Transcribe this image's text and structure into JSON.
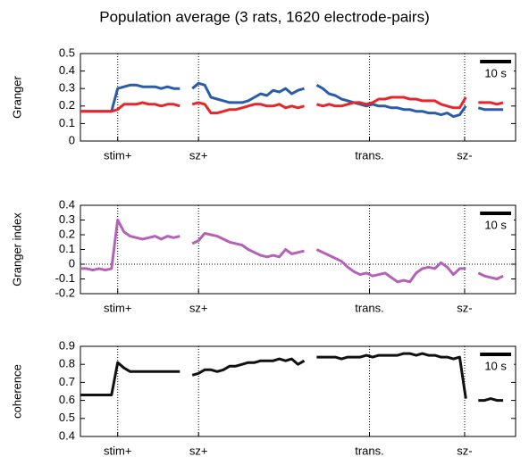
{
  "chart_data": [
    {
      "type": "line",
      "title": "Population average (3 rats, 1620 electrode-pairs)",
      "ylabel": "Granger",
      "x": [
        0,
        2,
        4,
        6,
        8,
        10,
        12,
        14,
        16,
        18,
        20,
        22,
        24,
        26,
        28,
        30,
        32,
        34,
        36,
        38,
        40,
        42,
        44,
        46,
        48,
        50,
        52,
        54,
        56,
        58,
        60,
        62,
        64,
        66,
        68,
        70,
        72,
        74,
        76,
        78,
        80,
        82,
        84,
        86,
        88,
        90,
        92,
        94,
        96,
        98,
        100,
        102,
        104,
        106,
        108,
        110,
        112,
        114,
        116,
        118,
        120,
        122,
        124,
        126,
        128,
        130,
        132,
        134,
        136
      ],
      "xlim": [
        0,
        140
      ],
      "ylim": [
        0,
        0.5
      ],
      "yticks": [
        0,
        0.1,
        0.2,
        0.3,
        0.4,
        0.5
      ],
      "xmarkers": [
        {
          "value": 12,
          "label": "stim+"
        },
        {
          "value": 38,
          "label": "sz+"
        },
        {
          "value": 93,
          "label": "trans."
        },
        {
          "value": 123.6,
          "label": "sz-"
        }
      ],
      "scalebar": {
        "value": 10,
        "label": "10 s"
      },
      "series": [
        {
          "color": "#2a5caa",
          "values": [
            0.17,
            0.17,
            0.17,
            0.17,
            0.17,
            0.17,
            0.3,
            0.31,
            0.32,
            0.32,
            0.31,
            0.31,
            0.31,
            0.3,
            0.31,
            0.3,
            0.3,
            null,
            0.3,
            0.33,
            0.32,
            0.25,
            0.24,
            0.23,
            0.22,
            0.22,
            0.22,
            0.23,
            0.25,
            0.27,
            0.26,
            0.29,
            0.28,
            0.3,
            0.27,
            0.29,
            0.3,
            null,
            0.32,
            0.3,
            0.27,
            0.26,
            0.24,
            0.23,
            0.22,
            0.21,
            0.2,
            0.21,
            0.2,
            0.2,
            0.19,
            0.19,
            0.18,
            0.18,
            0.17,
            0.17,
            0.16,
            0.16,
            0.15,
            0.16,
            0.14,
            0.15,
            0.2,
            null,
            0.19,
            0.18,
            0.18,
            0.18,
            0.18
          ]
        },
        {
          "color": "#e8262a",
          "values": [
            0.17,
            0.17,
            0.17,
            0.17,
            0.17,
            0.17,
            0.18,
            0.21,
            0.21,
            0.21,
            0.22,
            0.21,
            0.21,
            0.2,
            0.21,
            0.21,
            0.2,
            null,
            0.21,
            0.22,
            0.21,
            0.16,
            0.16,
            0.17,
            0.18,
            0.18,
            0.19,
            0.2,
            0.21,
            0.21,
            0.2,
            0.2,
            0.21,
            0.19,
            0.2,
            0.19,
            0.2,
            null,
            0.21,
            0.2,
            0.21,
            0.2,
            0.2,
            0.21,
            0.22,
            0.22,
            0.21,
            0.22,
            0.24,
            0.24,
            0.25,
            0.25,
            0.25,
            0.24,
            0.24,
            0.23,
            0.23,
            0.23,
            0.21,
            0.2,
            0.19,
            0.19,
            0.25,
            null,
            0.22,
            0.22,
            0.22,
            0.21,
            0.22
          ]
        }
      ]
    },
    {
      "type": "line",
      "ylabel": "Granger index",
      "zero_line": true,
      "x": [
        0,
        2,
        4,
        6,
        8,
        10,
        12,
        14,
        16,
        18,
        20,
        22,
        24,
        26,
        28,
        30,
        32,
        34,
        36,
        38,
        40,
        42,
        44,
        46,
        48,
        50,
        52,
        54,
        56,
        58,
        60,
        62,
        64,
        66,
        68,
        70,
        72,
        74,
        76,
        78,
        80,
        82,
        84,
        86,
        88,
        90,
        92,
        94,
        96,
        98,
        100,
        102,
        104,
        106,
        108,
        110,
        112,
        114,
        116,
        118,
        120,
        122,
        124,
        126,
        128,
        130,
        132,
        134,
        136
      ],
      "xlim": [
        0,
        140
      ],
      "ylim": [
        -0.2,
        0.4
      ],
      "yticks": [
        -0.2,
        -0.1,
        0,
        0.1,
        0.2,
        0.3,
        0.4
      ],
      "xmarkers": [
        {
          "value": 12,
          "label": "stim+"
        },
        {
          "value": 38,
          "label": "sz+"
        },
        {
          "value": 93,
          "label": "trans."
        },
        {
          "value": 123.6,
          "label": "sz-"
        }
      ],
      "scalebar": {
        "value": 10,
        "label": "10 s"
      },
      "series": [
        {
          "color": "#b462b8",
          "values": [
            -0.03,
            -0.03,
            -0.04,
            -0.03,
            -0.04,
            -0.03,
            0.3,
            0.22,
            0.19,
            0.18,
            0.17,
            0.18,
            0.19,
            0.17,
            0.19,
            0.18,
            0.19,
            null,
            0.14,
            0.16,
            0.21,
            0.2,
            0.19,
            0.17,
            0.15,
            0.14,
            0.13,
            0.1,
            0.08,
            0.06,
            0.05,
            0.06,
            0.05,
            0.1,
            0.07,
            0.08,
            0.09,
            null,
            0.1,
            0.08,
            0.06,
            0.04,
            0.02,
            -0.02,
            -0.05,
            -0.07,
            -0.06,
            -0.08,
            -0.07,
            -0.06,
            -0.09,
            -0.12,
            -0.11,
            -0.12,
            -0.06,
            -0.03,
            -0.02,
            -0.03,
            0.01,
            -0.02,
            -0.07,
            -0.03,
            -0.03,
            null,
            -0.06,
            -0.08,
            -0.09,
            -0.1,
            -0.08
          ]
        }
      ]
    },
    {
      "type": "line",
      "ylabel": "coherence",
      "x": [
        0,
        2,
        4,
        6,
        8,
        10,
        12,
        14,
        16,
        18,
        20,
        22,
        24,
        26,
        28,
        30,
        32,
        34,
        36,
        38,
        40,
        42,
        44,
        46,
        48,
        50,
        52,
        54,
        56,
        58,
        60,
        62,
        64,
        66,
        68,
        70,
        72,
        74,
        76,
        78,
        80,
        82,
        84,
        86,
        88,
        90,
        92,
        94,
        96,
        98,
        100,
        102,
        104,
        106,
        108,
        110,
        112,
        114,
        116,
        118,
        120,
        122,
        124,
        126,
        128,
        130,
        132,
        134,
        136
      ],
      "xlim": [
        0,
        140
      ],
      "ylim": [
        0.4,
        0.9
      ],
      "yticks": [
        0.4,
        0.5,
        0.6,
        0.7,
        0.8,
        0.9
      ],
      "xmarkers": [
        {
          "value": 12,
          "label": "stim+"
        },
        {
          "value": 38,
          "label": "sz+"
        },
        {
          "value": 93,
          "label": "trans."
        },
        {
          "value": 123.6,
          "label": "sz-"
        }
      ],
      "scalebar": {
        "value": 10,
        "label": "10 s"
      },
      "series": [
        {
          "color": "#111111",
          "values": [
            0.63,
            0.63,
            0.63,
            0.63,
            0.63,
            0.63,
            0.81,
            0.78,
            0.76,
            0.76,
            0.76,
            0.76,
            0.76,
            0.76,
            0.76,
            0.76,
            0.76,
            null,
            0.74,
            0.75,
            0.77,
            0.77,
            0.76,
            0.77,
            0.79,
            0.79,
            0.8,
            0.81,
            0.81,
            0.82,
            0.82,
            0.82,
            0.83,
            0.82,
            0.83,
            0.8,
            0.82,
            null,
            0.84,
            0.84,
            0.84,
            0.84,
            0.83,
            0.84,
            0.84,
            0.84,
            0.85,
            0.84,
            0.85,
            0.85,
            0.85,
            0.85,
            0.86,
            0.86,
            0.85,
            0.86,
            0.85,
            0.85,
            0.84,
            0.84,
            0.83,
            0.84,
            0.61,
            null,
            0.6,
            0.6,
            0.61,
            0.6,
            0.6
          ]
        }
      ]
    }
  ]
}
